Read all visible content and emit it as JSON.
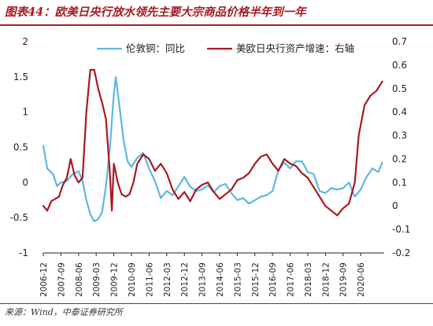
{
  "header": {
    "title": "图表44：欧美日央行放水领先主要大宗商品价格半年到一年"
  },
  "footer": {
    "source": "来源：Wind，中泰证券研究所"
  },
  "colors": {
    "title": "#a31e22",
    "series_copper": "#5bb8e0",
    "series_cb": "#a8191e"
  },
  "chart_data": {
    "type": "line",
    "x_labels": [
      "2006-12",
      "2007-09",
      "2008-06",
      "2009-03",
      "2009-12",
      "2010-09",
      "2011-06",
      "2012-03",
      "2012-12",
      "2013-09",
      "2014-06",
      "2015-03",
      "2015-12",
      "2016-09",
      "2017-06",
      "2018-03",
      "2018-12",
      "2019-09",
      "2020-06"
    ],
    "x_range": [
      "2006-12",
      "2021-06"
    ],
    "left_axis": {
      "ticks": [
        "2",
        "1.5",
        "1",
        "0.5",
        "0",
        "-0.5",
        "-1"
      ],
      "range": [
        -1,
        2
      ]
    },
    "right_axis": {
      "ticks": [
        "0.7",
        "0.6",
        "0.5",
        "0.4",
        "0.3",
        "0.2",
        "0.1",
        "0",
        "-0.1",
        "-0.2"
      ],
      "range": [
        -0.2,
        0.7
      ]
    },
    "legend_position": "top",
    "grid": false,
    "series": [
      {
        "name": "伦敦铜：同比",
        "axis": "left",
        "points": [
          [
            "2006-12",
            0.52
          ],
          [
            "2007-02",
            0.2
          ],
          [
            "2007-05",
            0.12
          ],
          [
            "2007-07",
            -0.05
          ],
          [
            "2007-09",
            0.0
          ],
          [
            "2007-12",
            0.02
          ],
          [
            "2008-03",
            0.12
          ],
          [
            "2008-06",
            0.16
          ],
          [
            "2008-08",
            0.02
          ],
          [
            "2008-10",
            -0.25
          ],
          [
            "2008-12",
            -0.45
          ],
          [
            "2009-02",
            -0.55
          ],
          [
            "2009-04",
            -0.52
          ],
          [
            "2009-06",
            -0.42
          ],
          [
            "2009-08",
            -0.05
          ],
          [
            "2009-10",
            0.5
          ],
          [
            "2009-12",
            1.25
          ],
          [
            "2010-01",
            1.5
          ],
          [
            "2010-03",
            1.05
          ],
          [
            "2010-05",
            0.6
          ],
          [
            "2010-07",
            0.3
          ],
          [
            "2010-09",
            0.22
          ],
          [
            "2010-12",
            0.35
          ],
          [
            "2011-03",
            0.42
          ],
          [
            "2011-06",
            0.2
          ],
          [
            "2011-09",
            0.02
          ],
          [
            "2011-12",
            -0.22
          ],
          [
            "2012-03",
            -0.12
          ],
          [
            "2012-06",
            -0.18
          ],
          [
            "2012-09",
            -0.05
          ],
          [
            "2012-12",
            0.08
          ],
          [
            "2013-03",
            -0.06
          ],
          [
            "2013-06",
            -0.12
          ],
          [
            "2013-09",
            -0.1
          ],
          [
            "2013-12",
            -0.04
          ],
          [
            "2014-03",
            -0.14
          ],
          [
            "2014-06",
            -0.05
          ],
          [
            "2014-09",
            -0.02
          ],
          [
            "2014-12",
            -0.15
          ],
          [
            "2015-03",
            -0.25
          ],
          [
            "2015-06",
            -0.22
          ],
          [
            "2015-09",
            -0.3
          ],
          [
            "2015-12",
            -0.25
          ],
          [
            "2016-03",
            -0.2
          ],
          [
            "2016-06",
            -0.18
          ],
          [
            "2016-09",
            -0.12
          ],
          [
            "2016-12",
            0.18
          ],
          [
            "2017-03",
            0.28
          ],
          [
            "2017-06",
            0.2
          ],
          [
            "2017-09",
            0.3
          ],
          [
            "2017-12",
            0.3
          ],
          [
            "2018-03",
            0.15
          ],
          [
            "2018-06",
            0.12
          ],
          [
            "2018-09",
            -0.12
          ],
          [
            "2018-12",
            -0.15
          ],
          [
            "2019-03",
            -0.08
          ],
          [
            "2019-06",
            -0.1
          ],
          [
            "2019-09",
            -0.08
          ],
          [
            "2019-12",
            0.0
          ],
          [
            "2020-03",
            -0.2
          ],
          [
            "2020-06",
            -0.1
          ],
          [
            "2020-09",
            0.08
          ],
          [
            "2020-12",
            0.2
          ],
          [
            "2021-03",
            0.15
          ],
          [
            "2021-05",
            0.28
          ]
        ]
      },
      {
        "name": "美欧日央行资产增速：右轴",
        "axis": "right",
        "points": [
          [
            "2006-12",
            0.0
          ],
          [
            "2007-02",
            -0.02
          ],
          [
            "2007-04",
            0.02
          ],
          [
            "2007-06",
            0.03
          ],
          [
            "2007-08",
            0.04
          ],
          [
            "2007-10",
            0.09
          ],
          [
            "2007-12",
            0.12
          ],
          [
            "2008-02",
            0.2
          ],
          [
            "2008-04",
            0.13
          ],
          [
            "2008-06",
            0.1
          ],
          [
            "2008-08",
            0.12
          ],
          [
            "2008-10",
            0.4
          ],
          [
            "2008-12",
            0.58
          ],
          [
            "2009-02",
            0.58
          ],
          [
            "2009-04",
            0.5
          ],
          [
            "2009-06",
            0.44
          ],
          [
            "2009-08",
            0.37
          ],
          [
            "2009-10",
            0.14
          ],
          [
            "2009-11",
            -0.02
          ],
          [
            "2009-12",
            0.18
          ],
          [
            "2010-02",
            0.1
          ],
          [
            "2010-04",
            0.05
          ],
          [
            "2010-06",
            0.04
          ],
          [
            "2010-08",
            0.05
          ],
          [
            "2010-10",
            0.1
          ],
          [
            "2010-12",
            0.18
          ],
          [
            "2011-03",
            0.22
          ],
          [
            "2011-06",
            0.2
          ],
          [
            "2011-09",
            0.15
          ],
          [
            "2011-12",
            0.18
          ],
          [
            "2012-03",
            0.14
          ],
          [
            "2012-06",
            0.07
          ],
          [
            "2012-09",
            0.03
          ],
          [
            "2012-12",
            0.06
          ],
          [
            "2013-03",
            0.02
          ],
          [
            "2013-06",
            0.07
          ],
          [
            "2013-09",
            0.09
          ],
          [
            "2013-12",
            0.1
          ],
          [
            "2014-03",
            0.06
          ],
          [
            "2014-06",
            0.03
          ],
          [
            "2014-09",
            0.05
          ],
          [
            "2014-12",
            0.07
          ],
          [
            "2015-03",
            0.11
          ],
          [
            "2015-06",
            0.12
          ],
          [
            "2015-09",
            0.14
          ],
          [
            "2015-12",
            0.18
          ],
          [
            "2016-03",
            0.21
          ],
          [
            "2016-06",
            0.22
          ],
          [
            "2016-09",
            0.18
          ],
          [
            "2016-12",
            0.15
          ],
          [
            "2017-03",
            0.2
          ],
          [
            "2017-06",
            0.18
          ],
          [
            "2017-09",
            0.17
          ],
          [
            "2017-12",
            0.14
          ],
          [
            "2018-03",
            0.12
          ],
          [
            "2018-06",
            0.08
          ],
          [
            "2018-09",
            0.04
          ],
          [
            "2018-12",
            0.0
          ],
          [
            "2019-03",
            -0.02
          ],
          [
            "2019-06",
            -0.04
          ],
          [
            "2019-09",
            -0.01
          ],
          [
            "2019-12",
            0.01
          ],
          [
            "2020-03",
            0.1
          ],
          [
            "2020-05",
            0.3
          ],
          [
            "2020-08",
            0.43
          ],
          [
            "2020-11",
            0.47
          ],
          [
            "2021-02",
            0.49
          ],
          [
            "2021-05",
            0.53
          ]
        ]
      }
    ]
  }
}
